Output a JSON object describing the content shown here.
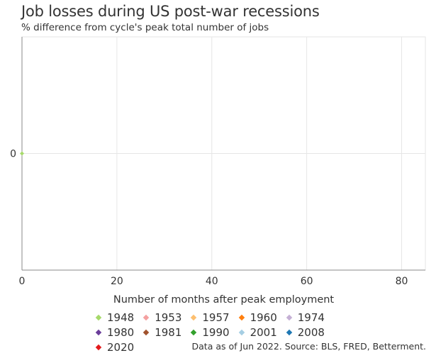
{
  "header": {
    "title": "Job losses during US post-war recessions",
    "subtitle": "% difference from cycle's peak total number of jobs"
  },
  "footer": {
    "source": "Data as of Jun 2022. Source: BLS, FRED, Betterment."
  },
  "chart_data": {
    "type": "line",
    "title": "Job losses during US post-war recessions",
    "subtitle": "% difference from cycle's peak total number of jobs",
    "xlabel": "Number of months after peak employment",
    "ylabel": "",
    "xlim": [
      0,
      85
    ],
    "ylim": [
      -1,
      1
    ],
    "x_ticks": [
      0,
      20,
      40,
      60,
      80
    ],
    "y_ticks": [
      0
    ],
    "grid": true,
    "legend_position": "bottom",
    "series": [
      {
        "name": "1948",
        "color": "#a6d96a",
        "points": [
          [
            0,
            0
          ]
        ]
      },
      {
        "name": "1953",
        "color": "#f4a0a0",
        "points": []
      },
      {
        "name": "1957",
        "color": "#fdbf6f",
        "points": []
      },
      {
        "name": "1960",
        "color": "#ff7f0e",
        "points": []
      },
      {
        "name": "1974",
        "color": "#c5b0d5",
        "points": []
      },
      {
        "name": "1980",
        "color": "#6a3d9a",
        "points": []
      },
      {
        "name": "1981",
        "color": "#a0522d",
        "points": []
      },
      {
        "name": "1990",
        "color": "#33a02c",
        "points": []
      },
      {
        "name": "2001",
        "color": "#a6cee3",
        "points": []
      },
      {
        "name": "2008",
        "color": "#1f78b4",
        "points": []
      },
      {
        "name": "2020",
        "color": "#e31a1c",
        "points": []
      }
    ]
  }
}
